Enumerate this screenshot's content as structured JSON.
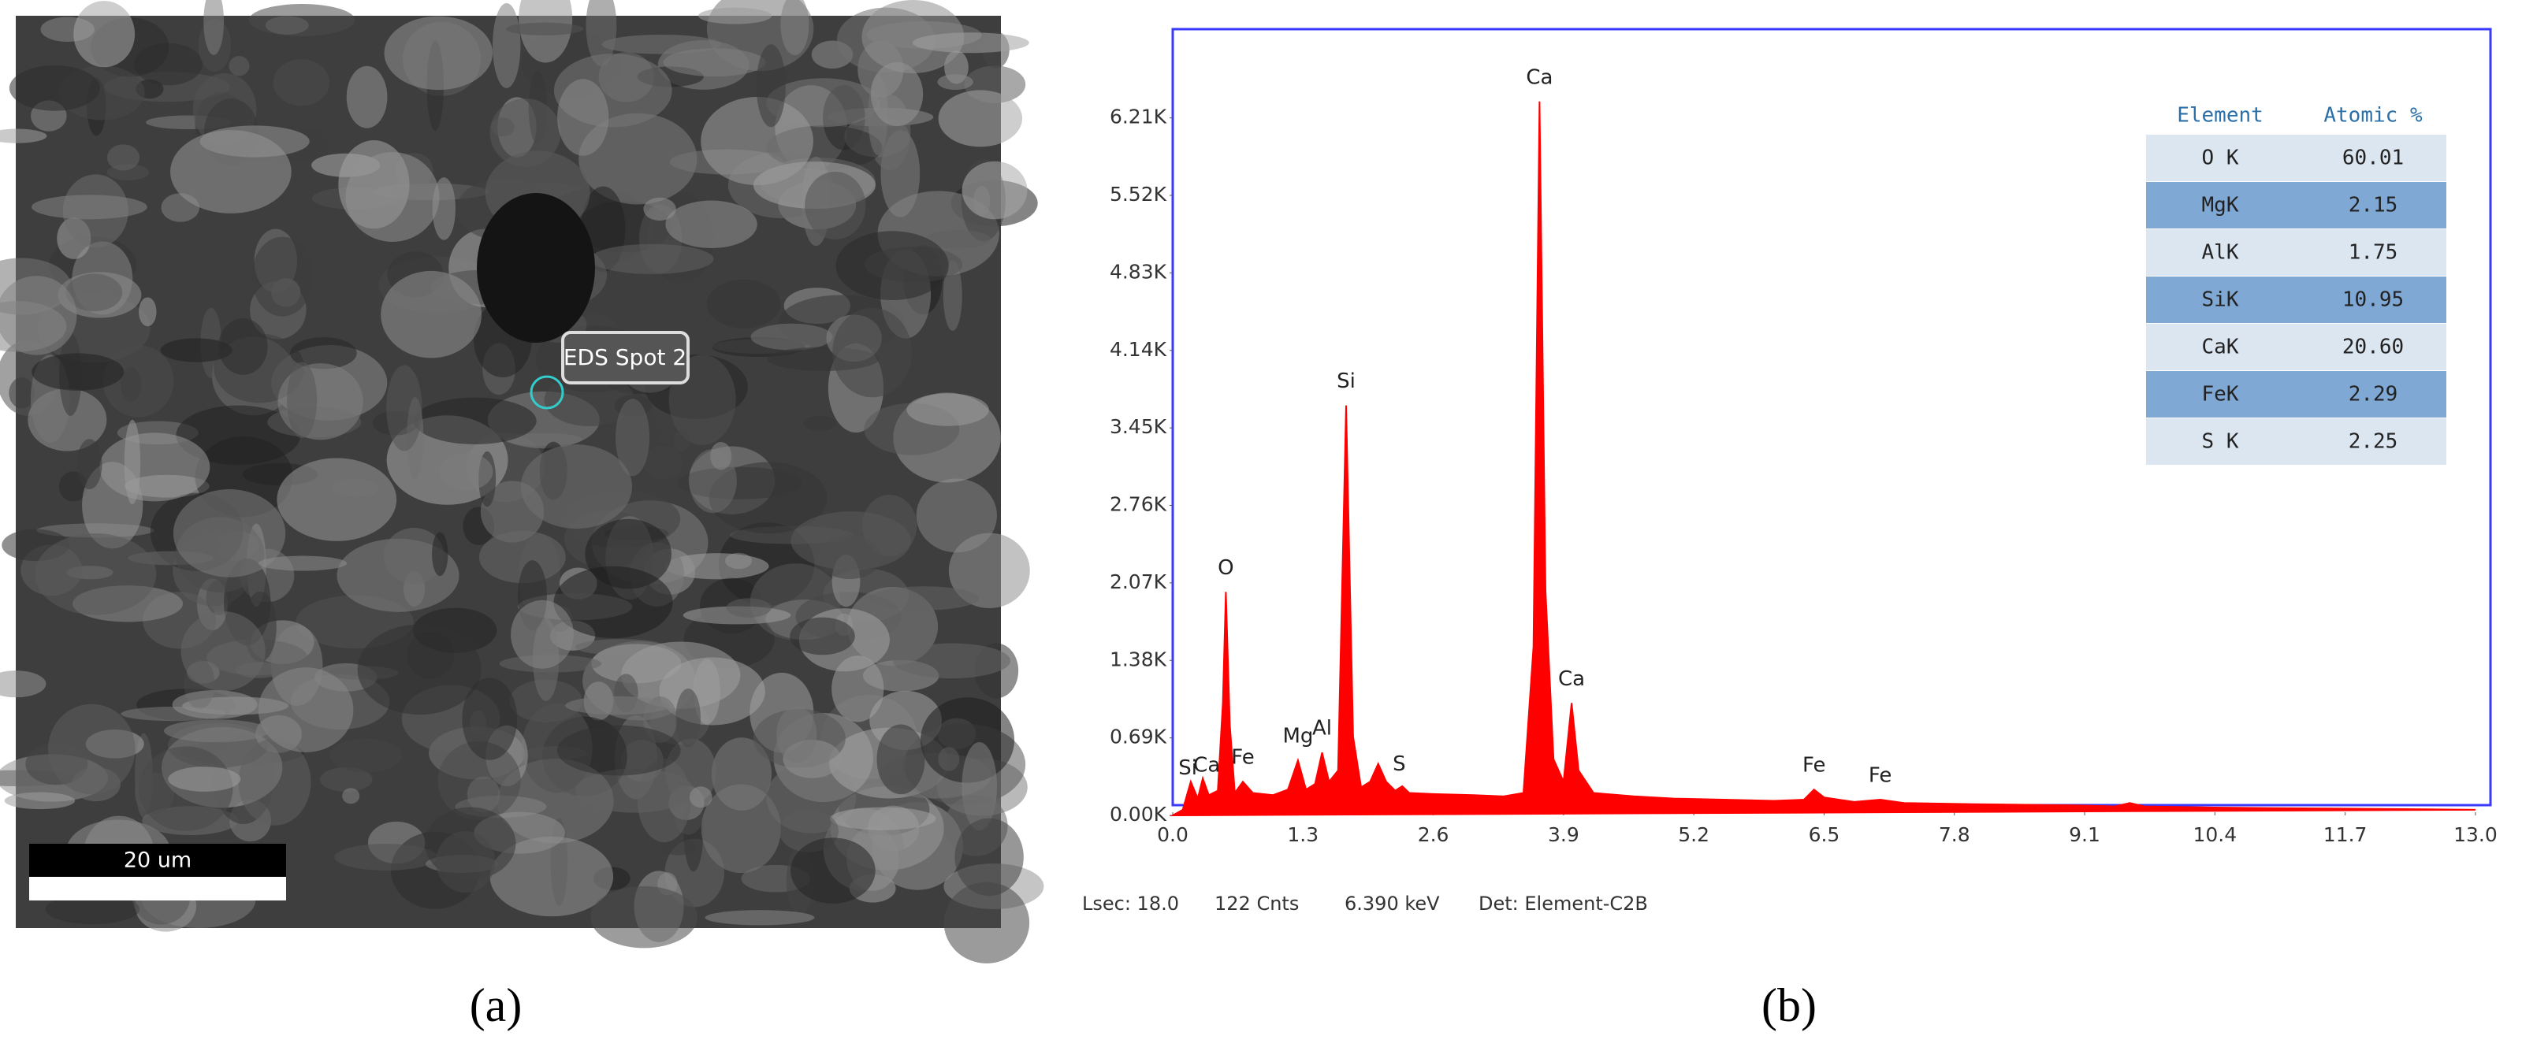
{
  "panel_a": {
    "spot_label": "EDS Spot 2",
    "scale_label": "20 um",
    "caption": "(a)"
  },
  "chart_data": {
    "type": "area",
    "x": [
      0.0,
      0.1,
      0.18,
      0.25,
      0.3,
      0.36,
      0.45,
      0.5,
      0.53,
      0.57,
      0.62,
      0.7,
      0.8,
      1.0,
      1.15,
      1.25,
      1.33,
      1.42,
      1.49,
      1.56,
      1.65,
      1.73,
      1.8,
      1.88,
      1.97,
      2.05,
      2.13,
      2.22,
      2.29,
      2.36,
      2.6,
      3.0,
      3.3,
      3.5,
      3.6,
      3.66,
      3.72,
      3.8,
      3.9,
      3.98,
      4.05,
      4.2,
      4.6,
      5.0,
      5.5,
      6.0,
      6.3,
      6.4,
      6.5,
      6.8,
      7.06,
      7.3,
      8.0,
      9.0,
      9.4,
      9.55,
      9.7,
      10.4,
      11.0,
      11.7,
      12.5,
      13.0
    ],
    "values": [
      0,
      50,
      300,
      150,
      330,
      180,
      220,
      1000,
      1990,
      800,
      200,
      300,
      200,
      180,
      230,
      490,
      230,
      280,
      560,
      300,
      400,
      3650,
      700,
      250,
      300,
      460,
      300,
      220,
      260,
      200,
      190,
      180,
      170,
      200,
      1500,
      6356,
      2000,
      500,
      300,
      1000,
      400,
      200,
      170,
      150,
      140,
      130,
      140,
      230,
      160,
      120,
      140,
      110,
      100,
      90,
      80,
      110,
      80,
      70,
      65,
      60,
      55,
      50
    ],
    "color": "#ff0000",
    "xlim": [
      0,
      13.15
    ],
    "xticks": [
      {
        "value": 0,
        "label": "0.0"
      },
      1.3,
      2.6,
      3.9,
      5.2,
      6.5,
      7.8,
      9.1,
      10.4,
      11.7,
      {
        "value": 13,
        "label": "13.0"
      }
    ],
    "ylim": [
      0,
      7000
    ],
    "yticks": [
      {
        "value": 0,
        "label": "0.00K"
      },
      {
        "value": 690,
        "label": "0.69K"
      },
      {
        "value": 1380,
        "label": "1.38K"
      },
      {
        "value": 2070,
        "label": "2.07K"
      },
      {
        "value": 2760,
        "label": "2.76K"
      },
      {
        "value": 3450,
        "label": "3.45K"
      },
      {
        "value": 4140,
        "label": "4.14K"
      },
      {
        "value": 4830,
        "label": "4.83K"
      },
      {
        "value": 5520,
        "label": "5.52K"
      },
      {
        "value": 6210,
        "label": "6.21K"
      }
    ],
    "peak_labels": [
      {
        "text": "Si",
        "x": 0.15
      },
      {
        "text": "Ca",
        "x": 0.34
      },
      {
        "text": "Fe",
        "x": 0.7
      },
      {
        "text": "O",
        "x": 0.53
      },
      {
        "text": "Mg",
        "x": 1.25
      },
      {
        "text": "Al",
        "x": 1.49
      },
      {
        "text": "Si",
        "x": 1.73
      },
      {
        "text": "S",
        "x": 2.26
      },
      {
        "text": "Ca",
        "x": 3.66
      },
      {
        "text": "Ca",
        "x": 3.98
      },
      {
        "text": "Fe",
        "x": 6.4
      },
      {
        "text": "Fe",
        "x": 7.06
      }
    ],
    "table": {
      "header": [
        "Element",
        "Atomic %"
      ],
      "rows": [
        [
          "O K",
          "60.01"
        ],
        [
          "MgK",
          "2.15"
        ],
        [
          "AlK",
          "1.75"
        ],
        [
          "SiK",
          "10.95"
        ],
        [
          "CaK",
          "20.60"
        ],
        [
          "FeK",
          "2.29"
        ],
        [
          "S K",
          "2.25"
        ]
      ]
    },
    "footer": [
      "Lsec: 18.0",
      "122 Cnts",
      "6.390 keV",
      "Det: Element-C2B"
    ],
    "caption": "(b)"
  }
}
